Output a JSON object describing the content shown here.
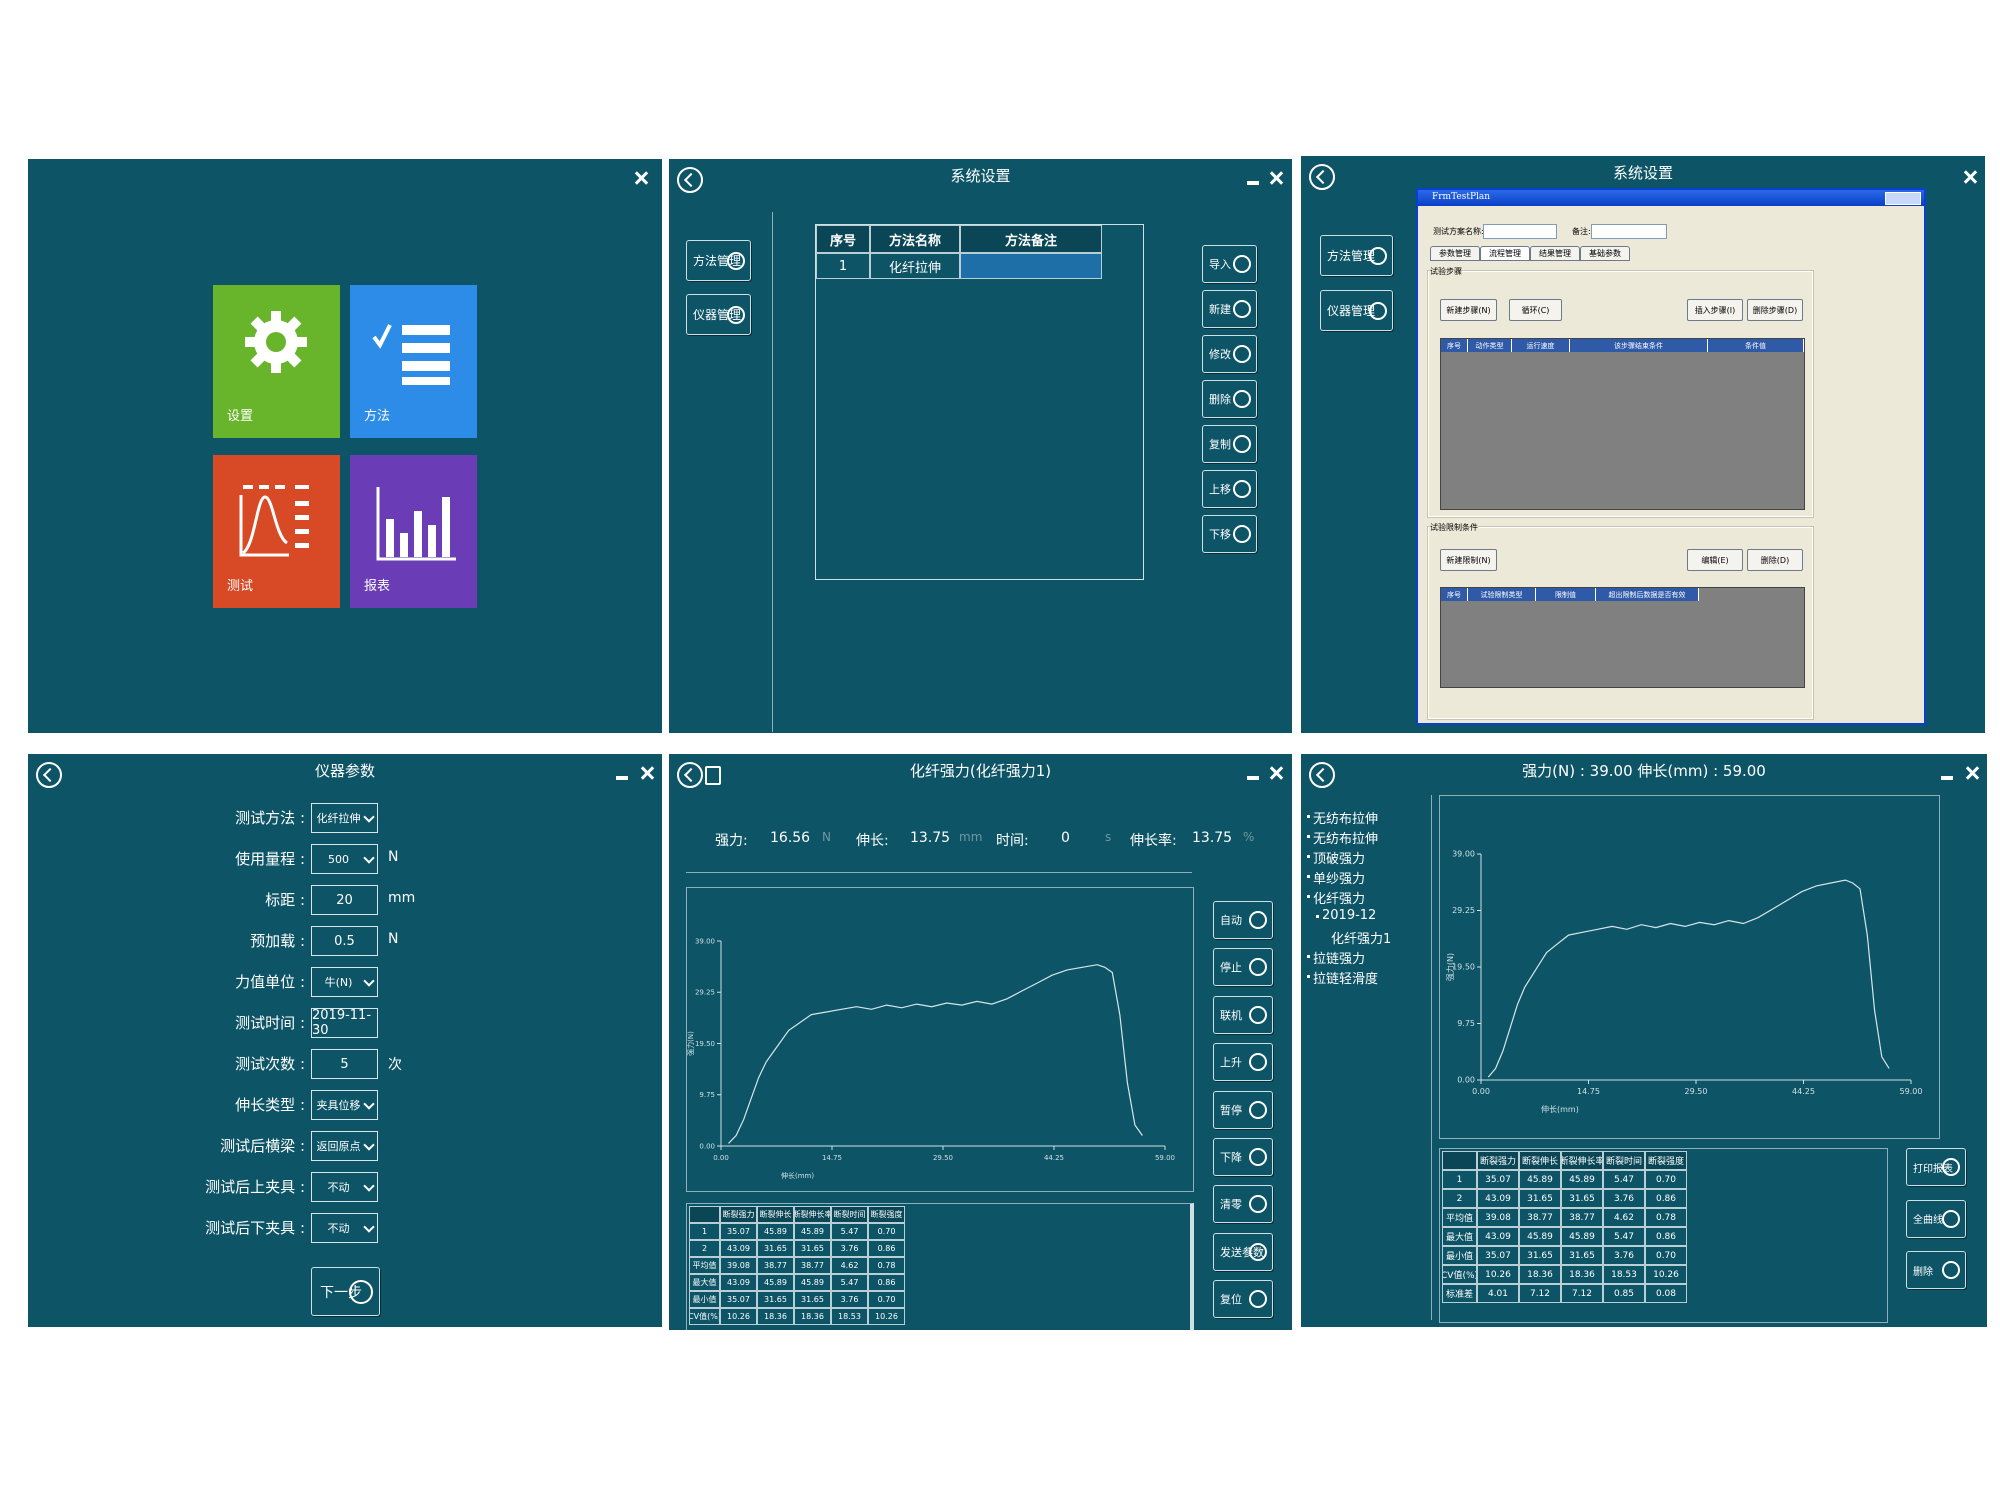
{
  "home": {
    "tiles": [
      "设置",
      "方法",
      "测试",
      "报表"
    ]
  },
  "methods": {
    "title": "系统设置",
    "sidebar": [
      "方法管理",
      "仪器管理"
    ],
    "columns": [
      "序号",
      "方法名称",
      "方法备注"
    ],
    "rows": [
      [
        1,
        "化纤拉伸"
      ]
    ],
    "buttons": [
      "导入",
      "新建",
      "修改",
      "删除",
      "复制",
      "上移",
      "下移"
    ]
  },
  "plan": {
    "title": "系统设置",
    "sidebar": [
      "方法管理",
      "仪器管理"
    ],
    "window_title": "FrmTestPlan",
    "fields": [
      "测试方案名称:",
      "备注:"
    ],
    "tabs": [
      "参数管理",
      "流程管理",
      "结果管理",
      "基础参数"
    ],
    "steps": {
      "title": "试验步骤",
      "buttons": [
        "新建步骤(N)",
        "循环(C)",
        "插入步骤(I)",
        "删除步骤(D)"
      ],
      "columns": [
        "序号",
        "动作类型",
        "运行速度",
        "该步骤结束条件",
        "条件值"
      ]
    },
    "limits": {
      "title": "试验限制条件",
      "buttons": [
        "新建限制(N)",
        "编辑(E)",
        "删除(D)"
      ],
      "columns": [
        "序号",
        "试验限制类型",
        "限制值",
        "超出限制后数据是否有效"
      ]
    }
  },
  "params": {
    "title": "仪器参数",
    "fields": [
      {
        "label": "测试方法 :",
        "value": "化纤拉伸",
        "dropdown": true
      },
      {
        "label": "使用量程 :",
        "value": 500,
        "unit": "N",
        "dropdown": true
      },
      {
        "label": "标距 :",
        "value": 20,
        "unit": "mm"
      },
      {
        "label": "预加载 :",
        "value": 0.5,
        "unit": "N"
      },
      {
        "label": "力值单位 :",
        "value": "牛(N)",
        "dropdown": true
      },
      {
        "label": "测试时间 :",
        "value": "2019-11-30"
      },
      {
        "label": "测试次数 :",
        "value": 5,
        "unit": "次"
      },
      {
        "label": "伸长类型 :",
        "value": "夹具位移",
        "dropdown": true
      },
      {
        "label": "测试后横梁 :",
        "value": "返回原点",
        "dropdown": true
      },
      {
        "label": "测试后上夹具 :",
        "value": "不动",
        "dropdown": true
      },
      {
        "label": "测试后下夹具 :",
        "value": "不动",
        "dropdown": true
      }
    ],
    "next": "下一步"
  },
  "test": {
    "title": "化纤强力(化纤强力1)",
    "readouts": [
      {
        "label": "强力:",
        "value": 16.56,
        "unit": "N"
      },
      {
        "label": "伸长:",
        "value": 13.75,
        "unit": "mm"
      },
      {
        "label": "时间:",
        "value": 0,
        "unit": "s"
      },
      {
        "label": "伸长率:",
        "value": 13.75,
        "unit": "%"
      }
    ],
    "buttons": [
      "自动",
      "停止",
      "联机",
      "上升",
      "暂停",
      "下降",
      "清零",
      "发送参数",
      "复位"
    ]
  },
  "results": {
    "title": "强力(N) : 39.00  伸长(mm) : 59.00",
    "tree": [
      {
        "label": "无纺布拉伸",
        "level": 0
      },
      {
        "label": "无纺布拉伸",
        "level": 0
      },
      {
        "label": "顶破强力",
        "level": 0
      },
      {
        "label": "单纱强力",
        "level": 0
      },
      {
        "label": "化纤强力",
        "level": 0
      },
      {
        "label": "2019-12",
        "level": 1
      },
      {
        "label": "化纤强力1",
        "level": 2
      },
      {
        "label": "拉链强力",
        "level": 0
      },
      {
        "label": "拉链轻滑度",
        "level": 0
      }
    ],
    "buttons": [
      "打印报表",
      "全曲线",
      "删除"
    ]
  },
  "table": {
    "columns": [
      "断裂强力",
      "断裂伸长",
      "断裂伸长率",
      "断裂时间",
      "断裂强度"
    ],
    "rows": [
      [
        "1",
        "35.07",
        "45.89",
        "45.89",
        "5.47",
        "0.70"
      ],
      [
        "2",
        "43.09",
        "31.65",
        "31.65",
        "3.76",
        "0.86"
      ],
      [
        "平均值",
        "39.08",
        "38.77",
        "38.77",
        "4.62",
        "0.78"
      ],
      [
        "最大值",
        "43.09",
        "45.89",
        "45.89",
        "5.47",
        "0.86"
      ],
      [
        "最小值",
        "35.07",
        "31.65",
        "31.65",
        "3.76",
        "0.70"
      ],
      [
        "CV值(%)",
        "10.26",
        "18.36",
        "18.36",
        "18.53",
        "10.26"
      ],
      [
        "标准差",
        "4.01",
        "7.12",
        "7.12",
        "0.85",
        "0.08"
      ]
    ]
  },
  "chart_data": {
    "type": "line",
    "xlabel": "伸长(mm)",
    "ylabel": "强力(N)",
    "x": [
      1,
      2,
      3,
      4,
      5,
      6,
      7,
      8,
      9,
      10,
      12,
      14,
      16,
      18,
      20,
      22,
      24,
      26,
      28,
      30,
      32,
      34,
      36,
      38,
      40,
      42,
      44,
      46,
      48,
      50,
      51,
      52,
      53,
      54,
      55,
      56
    ],
    "series": [
      {
        "color": "#d6e6ea",
        "values": [
          0.5,
          2,
          5,
          9,
          13,
          16,
          18,
          20,
          22,
          23,
          25,
          25.5,
          26,
          26.5,
          26,
          26.8,
          26.3,
          27,
          26.5,
          27.2,
          26.8,
          27.5,
          27,
          28,
          29.5,
          31,
          32.5,
          33.5,
          34,
          34.5,
          34,
          33,
          25,
          12,
          4,
          2
        ]
      }
    ],
    "xlim": [
      0,
      59
    ],
    "ylim": [
      0,
      39
    ],
    "xticks": [
      {
        "value": 0,
        "label": "0.00"
      },
      {
        "value": 14.75,
        "label": "14.75"
      },
      {
        "value": 29.5,
        "label": "29.50"
      },
      {
        "value": 44.25,
        "label": "44.25"
      },
      {
        "value": 59,
        "label": "59.00"
      }
    ],
    "yticks": [
      {
        "value": 0,
        "label": "0.00"
      },
      {
        "value": 9.75,
        "label": "9.75"
      },
      {
        "value": 19.5,
        "label": "19.50"
      },
      {
        "value": 29.25,
        "label": "29.25"
      },
      {
        "value": 39,
        "label": "39.00"
      }
    ]
  }
}
